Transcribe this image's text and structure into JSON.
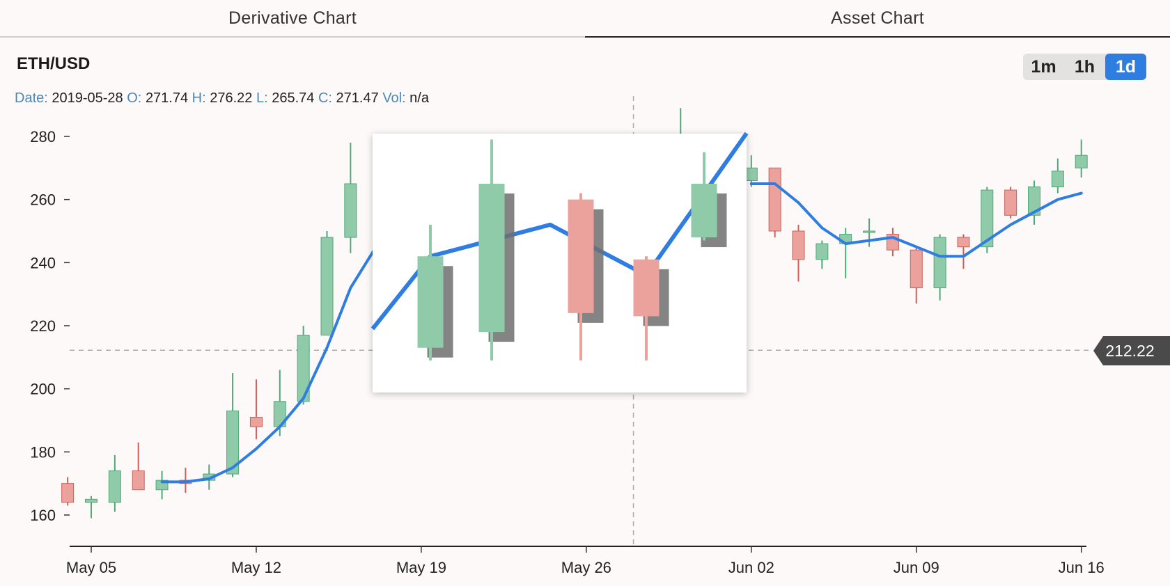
{
  "tabs": [
    {
      "label": "Derivative Chart",
      "active": false
    },
    {
      "label": "Asset Chart",
      "active": true
    }
  ],
  "pair": "ETH/USD",
  "timeframes": [
    {
      "label": "1m",
      "active": false
    },
    {
      "label": "1h",
      "active": false
    },
    {
      "label": "1d",
      "active": true
    }
  ],
  "ohlc": {
    "date_key": "Date:",
    "date": "2019-05-28",
    "o_key": "O:",
    "o": "271.74",
    "h_key": "H:",
    "h": "276.22",
    "l_key": "L:",
    "l": "265.74",
    "c_key": "C:",
    "c": "271.47",
    "vol_key": "Vol:",
    "vol": "n/a"
  },
  "crosshair_price": "212.22",
  "colors": {
    "up": "#8fcaa9",
    "up_edge": "#4fa878",
    "down": "#eba29d",
    "down_edge": "#cc5f58",
    "line": "#2f7de1",
    "accent": "#2f7de1",
    "tag_bg": "#4a4a4a"
  },
  "chart_data": {
    "type": "candlestick",
    "ylim": [
      150,
      285
    ],
    "yticks": [
      160,
      180,
      200,
      220,
      240,
      260,
      280
    ],
    "xticks": [
      "May 05",
      "May 12",
      "May 19",
      "May 26",
      "Jun 02",
      "Jun 09",
      "Jun 16"
    ],
    "crosshair": {
      "date": "May 28",
      "price": 212.22
    },
    "candles": [
      {
        "d": "May 04",
        "o": 170,
        "h": 172,
        "l": 163,
        "c": 164
      },
      {
        "d": "May 05",
        "o": 164,
        "h": 166,
        "l": 159,
        "c": 165
      },
      {
        "d": "May 06",
        "o": 164,
        "h": 179,
        "l": 161,
        "c": 174
      },
      {
        "d": "May 07",
        "o": 174,
        "h": 183,
        "l": 168,
        "c": 168
      },
      {
        "d": "May 08",
        "o": 168,
        "h": 174,
        "l": 165,
        "c": 171
      },
      {
        "d": "May 09",
        "o": 171,
        "h": 175,
        "l": 167,
        "c": 170
      },
      {
        "d": "May 10",
        "o": 171,
        "h": 176,
        "l": 168,
        "c": 173
      },
      {
        "d": "May 11",
        "o": 173,
        "h": 205,
        "l": 172,
        "c": 193
      },
      {
        "d": "May 12",
        "o": 191,
        "h": 203,
        "l": 184,
        "c": 188
      },
      {
        "d": "May 13",
        "o": 188,
        "h": 206,
        "l": 185,
        "c": 196
      },
      {
        "d": "May 14",
        "o": 196,
        "h": 220,
        "l": 195,
        "c": 217
      },
      {
        "d": "May 15",
        "o": 217,
        "h": 250,
        "l": 217,
        "c": 248
      },
      {
        "d": "May 16",
        "o": 248,
        "h": 278,
        "l": 243,
        "c": 265
      },
      {
        "d": "May 30",
        "o": 264,
        "h": 289,
        "l": 262,
        "c": 270
      },
      {
        "d": "Jun 02",
        "o": 266,
        "h": 274,
        "l": 264,
        "c": 270
      },
      {
        "d": "Jun 03",
        "o": 270,
        "h": 270,
        "l": 248,
        "c": 250
      },
      {
        "d": "Jun 04",
        "o": 250,
        "h": 252,
        "l": 234,
        "c": 241
      },
      {
        "d": "Jun 05",
        "o": 241,
        "h": 247,
        "l": 238,
        "c": 246
      },
      {
        "d": "Jun 06",
        "o": 246,
        "h": 251,
        "l": 235,
        "c": 249
      },
      {
        "d": "Jun 07",
        "o": 250,
        "h": 254,
        "l": 245,
        "c": 250
      },
      {
        "d": "Jun 08",
        "o": 249,
        "h": 251,
        "l": 242,
        "c": 244
      },
      {
        "d": "Jun 09",
        "o": 244,
        "h": 245,
        "l": 227,
        "c": 232
      },
      {
        "d": "Jun 10",
        "o": 232,
        "h": 249,
        "l": 228,
        "c": 248
      },
      {
        "d": "Jun 11",
        "o": 248,
        "h": 249,
        "l": 238,
        "c": 245
      },
      {
        "d": "Jun 12",
        "o": 245,
        "h": 264,
        "l": 243,
        "c": 263
      },
      {
        "d": "Jun 13",
        "o": 263,
        "h": 264,
        "l": 254,
        "c": 255
      },
      {
        "d": "Jun 14",
        "o": 255,
        "h": 266,
        "l": 252,
        "c": 264
      },
      {
        "d": "Jun 15",
        "o": 264,
        "h": 273,
        "l": 262,
        "c": 269
      },
      {
        "d": "Jun 16",
        "o": 270,
        "h": 279,
        "l": 267,
        "c": 274
      }
    ],
    "moving_average": [
      {
        "d": "May 08",
        "v": 170.5
      },
      {
        "d": "May 09",
        "v": 170.5
      },
      {
        "d": "May 10",
        "v": 171.5
      },
      {
        "d": "May 11",
        "v": 175
      },
      {
        "d": "May 12",
        "v": 181
      },
      {
        "d": "May 13",
        "v": 188
      },
      {
        "d": "May 14",
        "v": 197
      },
      {
        "d": "May 15",
        "v": 213
      },
      {
        "d": "May 16",
        "v": 232
      },
      {
        "d": "May 17",
        "v": 244
      },
      {
        "d": "Jun 02",
        "v": 265
      },
      {
        "d": "Jun 03",
        "v": 265
      },
      {
        "d": "Jun 04",
        "v": 259
      },
      {
        "d": "Jun 05",
        "v": 251
      },
      {
        "d": "Jun 06",
        "v": 246
      },
      {
        "d": "Jun 07",
        "v": 247
      },
      {
        "d": "Jun 08",
        "v": 248
      },
      {
        "d": "Jun 09",
        "v": 245
      },
      {
        "d": "Jun 10",
        "v": 242
      },
      {
        "d": "Jun 11",
        "v": 242
      },
      {
        "d": "Jun 12",
        "v": 247
      },
      {
        "d": "Jun 13",
        "v": 252
      },
      {
        "d": "Jun 14",
        "v": 256
      },
      {
        "d": "Jun 15",
        "v": 260
      },
      {
        "d": "Jun 16",
        "v": 262
      }
    ],
    "overlay_image": {
      "candles": [
        {
          "o": 213,
          "h": 252,
          "l": 209,
          "c": 242
        },
        {
          "o": 218,
          "h": 279,
          "l": 209,
          "c": 265
        },
        {
          "o": 260,
          "h": 262,
          "l": 209,
          "c": 224
        },
        {
          "o": 241,
          "h": 242,
          "l": 209,
          "c": 223
        },
        {
          "o": 248,
          "h": 275,
          "l": 247,
          "c": 265
        }
      ],
      "line": [
        219,
        242,
        252,
        236,
        281
      ]
    }
  }
}
